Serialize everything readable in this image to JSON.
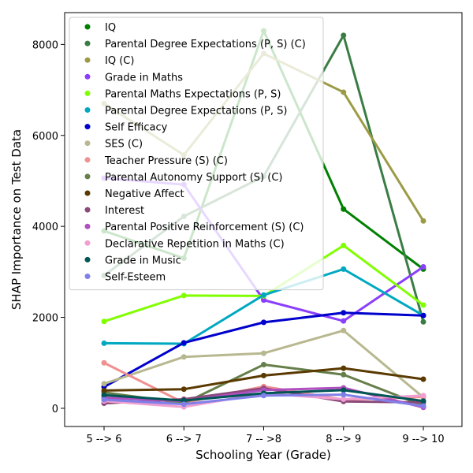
{
  "chart_data": {
    "type": "line",
    "xlabel": "Schooling Year (Grade)",
    "ylabel": "SHAP Importance on Test Data",
    "categories": [
      "5 --> 6",
      "6 --> 7",
      "7 -- >8",
      "8 --> 9",
      "9 --> 10"
    ],
    "ylim": [
      -400,
      8700
    ],
    "yticks": [
      0,
      2000,
      4000,
      6000,
      8000
    ],
    "legend_position": "upper-left",
    "grid": false,
    "series": [
      {
        "name": "IQ",
        "color": "#008000",
        "values": [
          3900,
          3300,
          8300,
          4380,
          3060
        ]
      },
      {
        "name": "Parental Degree Expectations (P, S) (C)",
        "color": "#3a7d44",
        "values": [
          2920,
          4220,
          5100,
          8200,
          1900
        ]
      },
      {
        "name": "IQ (C)",
        "color": "#9b9b46",
        "values": [
          6700,
          5570,
          7800,
          6950,
          4120
        ]
      },
      {
        "name": "Grade in Maths",
        "color": "#8a3ffc",
        "values": [
          5060,
          4920,
          2380,
          1920,
          3110
        ]
      },
      {
        "name": "Parental Maths Expectations (P, S)",
        "color": "#80ff00",
        "values": [
          1910,
          2480,
          2470,
          3580,
          2270
        ]
      },
      {
        "name": "Parental Degree Expectations (P, S)",
        "color": "#00a8c0",
        "values": [
          1430,
          1420,
          2490,
          3060,
          2040
        ]
      },
      {
        "name": "Self Efficacy",
        "color": "#0000cc",
        "values": [
          470,
          1440,
          1890,
          2100,
          2040
        ]
      },
      {
        "name": "SES (C)",
        "color": "#b8b890",
        "values": [
          540,
          1130,
          1210,
          1710,
          240
        ]
      },
      {
        "name": "Teacher Pressure (S) (C)",
        "color": "#f09090",
        "values": [
          1000,
          120,
          480,
          190,
          250
        ]
      },
      {
        "name": "Parental Autonomy Support (S) (C)",
        "color": "#667f4a",
        "values": [
          350,
          110,
          960,
          740,
          60
        ]
      },
      {
        "name": "Negative Affect",
        "color": "#5a3a00",
        "values": [
          390,
          420,
          720,
          880,
          640
        ]
      },
      {
        "name": "Interest",
        "color": "#8b4a7a",
        "values": [
          110,
          200,
          440,
          150,
          130
        ]
      },
      {
        "name": "Parental Positive Reinforcement (S) (C)",
        "color": "#b050c0",
        "values": [
          230,
          160,
          400,
          450,
          20
        ]
      },
      {
        "name": "Declarative Repetition in Maths (C)",
        "color": "#f0a0d0",
        "values": [
          160,
          30,
          330,
          200,
          280
        ]
      },
      {
        "name": "Grade in Music",
        "color": "#005555",
        "values": [
          290,
          170,
          330,
          400,
          160
        ]
      },
      {
        "name": "Self-Esteem",
        "color": "#8080e8",
        "values": [
          190,
          90,
          280,
          300,
          50
        ]
      }
    ]
  }
}
